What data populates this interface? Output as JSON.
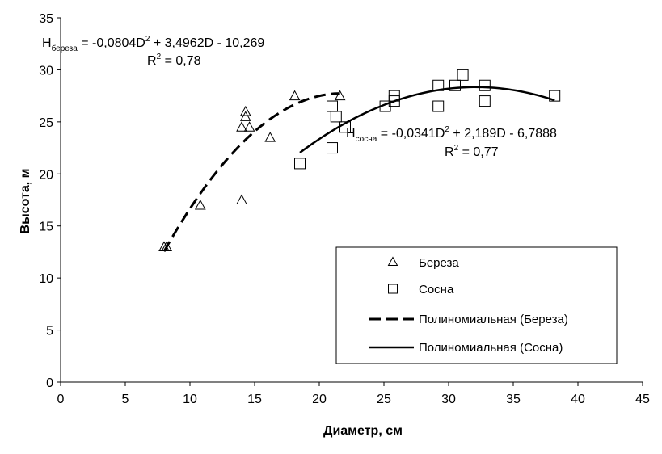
{
  "chart_data": {
    "type": "scatter",
    "xlabel": "Диаметр, см",
    "ylabel": "Высота, м",
    "xlim": [
      0,
      45
    ],
    "ylim": [
      0,
      35
    ],
    "xticks": [
      0,
      5,
      10,
      15,
      20,
      25,
      30,
      35,
      40,
      45
    ],
    "yticks": [
      0,
      5,
      10,
      15,
      20,
      25,
      30,
      35
    ],
    "grid": false,
    "legend_position": "bottom-right",
    "series": [
      {
        "name": "Береза",
        "marker": "triangle",
        "points": [
          [
            8,
            13
          ],
          [
            8.2,
            13
          ],
          [
            10.8,
            17
          ],
          [
            14,
            17.5
          ],
          [
            14,
            24.5
          ],
          [
            14.3,
            26
          ],
          [
            14.3,
            25.5
          ],
          [
            14.6,
            24.5
          ],
          [
            16.2,
            23.5
          ],
          [
            18.1,
            27.5
          ],
          [
            21.6,
            27.5
          ]
        ]
      },
      {
        "name": "Сосна",
        "marker": "square",
        "points": [
          [
            18.5,
            21
          ],
          [
            21,
            22.5
          ],
          [
            21,
            26.5
          ],
          [
            21.3,
            25.5
          ],
          [
            22,
            24.5
          ],
          [
            25.1,
            26.5
          ],
          [
            25.8,
            27.5
          ],
          [
            25.8,
            27
          ],
          [
            29.2,
            28.5
          ],
          [
            29.2,
            26.5
          ],
          [
            30.5,
            28.5
          ],
          [
            31.1,
            29.5
          ],
          [
            32.8,
            28.5
          ],
          [
            32.8,
            27
          ],
          [
            38.2,
            27.5
          ]
        ]
      }
    ],
    "trendlines": [
      {
        "name": "Полиномиальная (Береза)",
        "style": "dashed",
        "coefficients": [
          -0.0804,
          3.4962,
          -10.269
        ],
        "x_range": [
          8,
          21.6
        ]
      },
      {
        "name": "Полиномиальная (Сосна)",
        "style": "solid",
        "coefficients": [
          -0.0341,
          2.189,
          -6.7888
        ],
        "x_range": [
          18.5,
          38.2
        ]
      }
    ],
    "annotations": {
      "birch": {
        "h": "H",
        "sub": "береза",
        "eq1": " = -0,0804D",
        "sup1": "2",
        "eq2": " + 3,4962D - 10,269",
        "r": "R",
        "r_sup": "2",
        "r_val": " = 0,78"
      },
      "pine": {
        "h": "H",
        "sub": "сосна",
        "eq1": " = -0,0341D",
        "sup1": "2",
        "eq2": " + 2,189D - 6,7888",
        "r": "R",
        "r_sup": "2",
        "r_val": " = 0,77"
      }
    },
    "legend": [
      "Береза",
      "Сосна",
      "Полиномиальная (Береза)",
      "Полиномиальная (Сосна)"
    ]
  }
}
